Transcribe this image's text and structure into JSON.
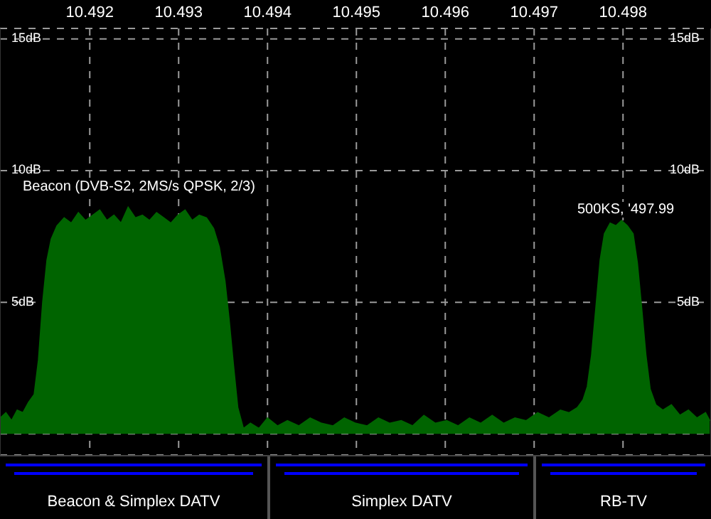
{
  "chart_data": {
    "type": "area",
    "x": [
      10.490992,
      10.491056,
      10.49112,
      10.491184,
      10.491248,
      10.491312,
      10.491376,
      10.491424,
      10.491472,
      10.49152,
      10.491568,
      10.491632,
      10.491712,
      10.491792,
      10.491872,
      10.491952,
      10.492032,
      10.492112,
      10.492192,
      10.492272,
      10.492352,
      10.492432,
      10.492512,
      10.492592,
      10.492672,
      10.492752,
      10.492832,
      10.492912,
      10.492992,
      10.493072,
      10.493152,
      10.493232,
      10.493312,
      10.493392,
      10.493456,
      10.49352,
      10.493568,
      10.493616,
      10.493664,
      10.493728,
      10.493808,
      10.493904,
      10.494,
      10.494112,
      10.494224,
      10.494352,
      10.49448,
      10.494608,
      10.494736,
      10.494864,
      10.494992,
      10.49512,
      10.495248,
      10.495376,
      10.495504,
      10.495632,
      10.49576,
      10.495888,
      10.496016,
      10.496144,
      10.496272,
      10.4964,
      10.496528,
      10.496656,
      10.496784,
      10.496912,
      10.49704,
      10.497168,
      10.497296,
      10.497392,
      10.497488,
      10.497552,
      10.4976,
      10.497648,
      10.497696,
      10.497744,
      10.497792,
      10.497856,
      10.49792,
      10.497984,
      10.498048,
      10.498112,
      10.49816,
      10.498208,
      10.498256,
      10.498304,
      10.498368,
      10.498448,
      10.498544,
      10.49864,
      10.498736,
      10.498832,
      10.498928,
      10.498976
    ],
    "series": [
      {
        "color": "#006400",
        "values": [
          0.6,
          0.8,
          0.5,
          0.9,
          0.8,
          1.2,
          1.5,
          2.8,
          5.0,
          6.6,
          7.4,
          7.9,
          8.2,
          8.0,
          8.4,
          8.1,
          8.3,
          8.5,
          8.1,
          8.3,
          8.0,
          8.6,
          8.2,
          8.3,
          8.1,
          8.4,
          8.2,
          8.0,
          8.3,
          8.5,
          8.1,
          8.3,
          8.2,
          7.8,
          7.1,
          5.8,
          4.3,
          2.6,
          1.0,
          0.2,
          0.4,
          0.2,
          0.6,
          0.3,
          0.5,
          0.3,
          0.6,
          0.4,
          0.3,
          0.6,
          0.4,
          0.3,
          0.6,
          0.4,
          0.5,
          0.3,
          0.7,
          0.4,
          0.5,
          0.3,
          0.6,
          0.4,
          0.7,
          0.4,
          0.6,
          0.5,
          0.8,
          0.6,
          0.9,
          0.8,
          1.0,
          1.3,
          1.8,
          3.0,
          4.8,
          6.6,
          7.6,
          8.0,
          7.9,
          8.1,
          7.9,
          7.6,
          6.5,
          4.8,
          3.0,
          1.7,
          1.1,
          0.9,
          1.1,
          0.7,
          0.9,
          0.6,
          0.8,
          0.5
        ]
      }
    ],
    "xlim": [
      10.49099,
      10.49899
    ],
    "xticks": [
      10.492,
      10.493,
      10.494,
      10.495,
      10.496,
      10.497,
      10.498
    ],
    "ylim": [
      -0.8,
      15.4
    ],
    "yticks": [
      {
        "value": 0,
        "label": null
      },
      {
        "value": 5,
        "label": "5dB"
      },
      {
        "value": 10,
        "label": "10dB"
      },
      {
        "value": 15,
        "label": "15dB"
      }
    ],
    "y2lim": [
      -0.8,
      15.4
    ],
    "y2ticks": [
      {
        "value": 0,
        "label": null
      },
      {
        "value": 5,
        "label": "5dB"
      },
      {
        "value": 10,
        "label": "10dB"
      },
      {
        "value": 15,
        "label": "15dB"
      }
    ],
    "grid": true,
    "legend": false,
    "annotations": [
      "Beacon (DVB-S2, 2MS/s QPSK, 2/3)",
      "500KS, '497.99",
      "Beacon & Simplex DATV",
      "Simplex DATV",
      "RB-TV"
    ]
  }
}
